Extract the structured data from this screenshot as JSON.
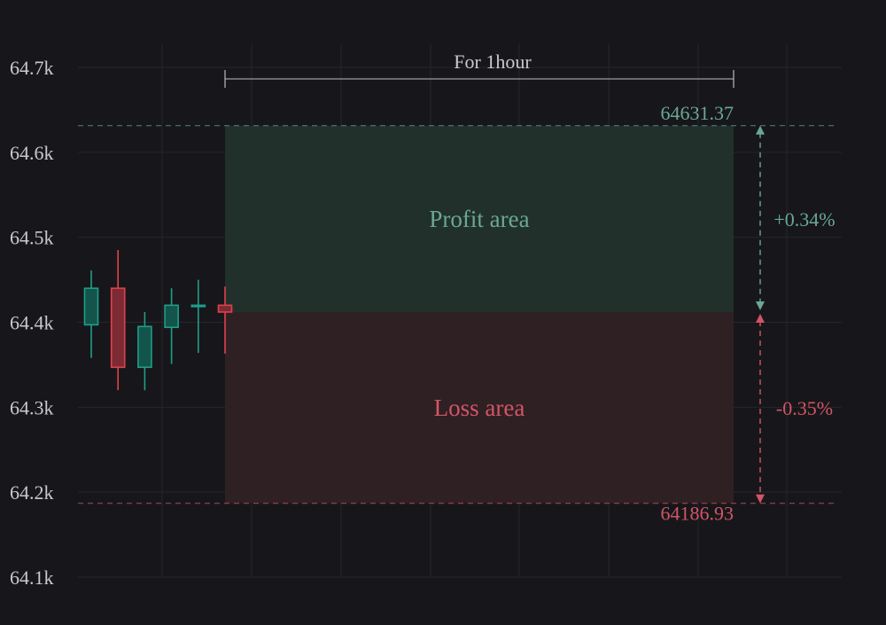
{
  "colors": {
    "background": "#17171b",
    "grid": "#25262b",
    "axis_text": "#c9c9cc",
    "up": "#1f9e89",
    "up_fill": "#13544b",
    "down": "#e0404c",
    "down_fill": "#7c2a33",
    "profit": "#6aa892",
    "profit_fill": "#21302b",
    "loss": "#d25565",
    "loss_fill": "#2f2024",
    "bracket": "#bdbdc0"
  },
  "chart_data": {
    "type": "candlestick",
    "y_axis": {
      "min": 64100,
      "max": 64700,
      "ticks": [
        64100,
        64200,
        64300,
        64400,
        64500,
        64600,
        64700
      ],
      "tick_labels": [
        "64.1k",
        "64.2k",
        "64.3k",
        "64.4k",
        "64.5k",
        "64.6k",
        "64.7k"
      ]
    },
    "grid": true,
    "candles": [
      {
        "open": 64397,
        "high": 64461,
        "low": 64358,
        "close": 64440
      },
      {
        "open": 64440,
        "high": 64485,
        "low": 64320,
        "close": 64347
      },
      {
        "open": 64347,
        "high": 64412,
        "low": 64320,
        "close": 64395
      },
      {
        "open": 64394,
        "high": 64440,
        "low": 64351,
        "close": 64420
      },
      {
        "open": 64420,
        "high": 64450,
        "low": 64364,
        "close": 64420
      },
      {
        "open": 64420,
        "high": 64442,
        "low": 64363,
        "close": 64412
      }
    ],
    "entry_price": 64412,
    "take_profit": 64631.37,
    "stop_loss": 64186.93,
    "take_profit_label": "64631.37",
    "stop_loss_label": "64186.93",
    "profit_area_label": "Profit area",
    "loss_area_label": "Loss area",
    "profit_pct_label": "+0.34%",
    "loss_pct_label": "-0.35%",
    "duration_label": "For 1hour"
  }
}
